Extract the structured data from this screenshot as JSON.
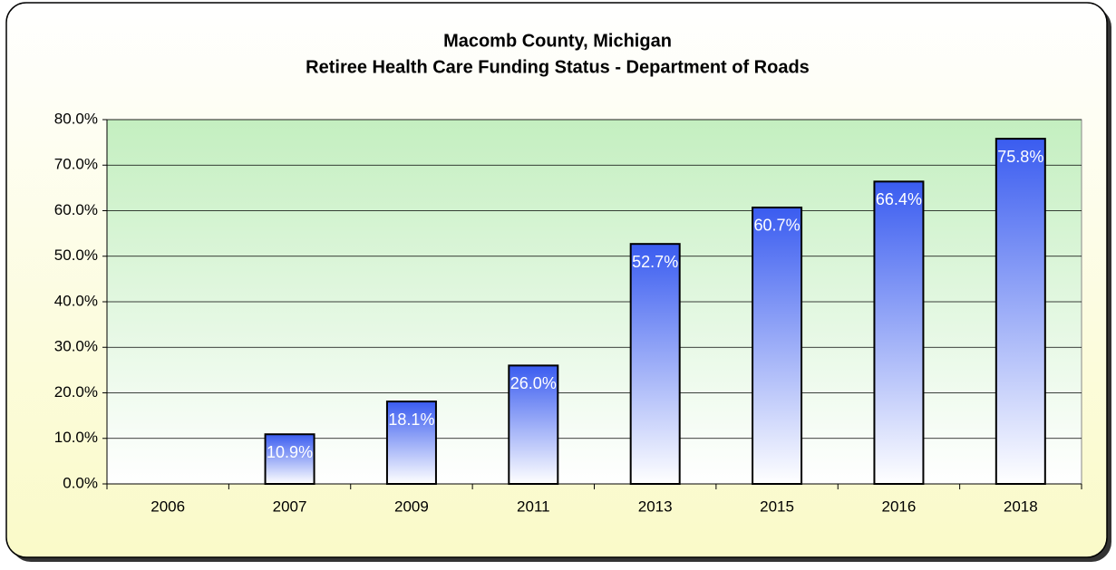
{
  "chart_data": {
    "type": "bar",
    "title": "Macomb County, Michigan",
    "subtitle": "Retiree Health Care Funding Status - Department of Roads",
    "categories": [
      "2006",
      "2007",
      "2009",
      "2011",
      "2013",
      "2015",
      "2016",
      "2018"
    ],
    "values": [
      null,
      10.9,
      18.1,
      26.0,
      52.7,
      60.7,
      66.4,
      75.8
    ],
    "value_labels": [
      null,
      "10.9%",
      "18.1%",
      "26.0%",
      "52.7%",
      "60.7%",
      "66.4%",
      "75.8%"
    ],
    "color": "#3a5cf0",
    "ylim": [
      0,
      80
    ],
    "yticks": [
      {
        "value": 0,
        "label": "0.0%"
      },
      {
        "value": 10,
        "label": "10.0%"
      },
      {
        "value": 20,
        "label": "20.0%"
      },
      {
        "value": 30,
        "label": "30.0%"
      },
      {
        "value": 40,
        "label": "40.0%"
      },
      {
        "value": 50,
        "label": "50.0%"
      },
      {
        "value": 60,
        "label": "60.0%"
      },
      {
        "value": 70,
        "label": "70.0%"
      },
      {
        "value": 80,
        "label": "80.0%"
      }
    ],
    "grid": true
  }
}
